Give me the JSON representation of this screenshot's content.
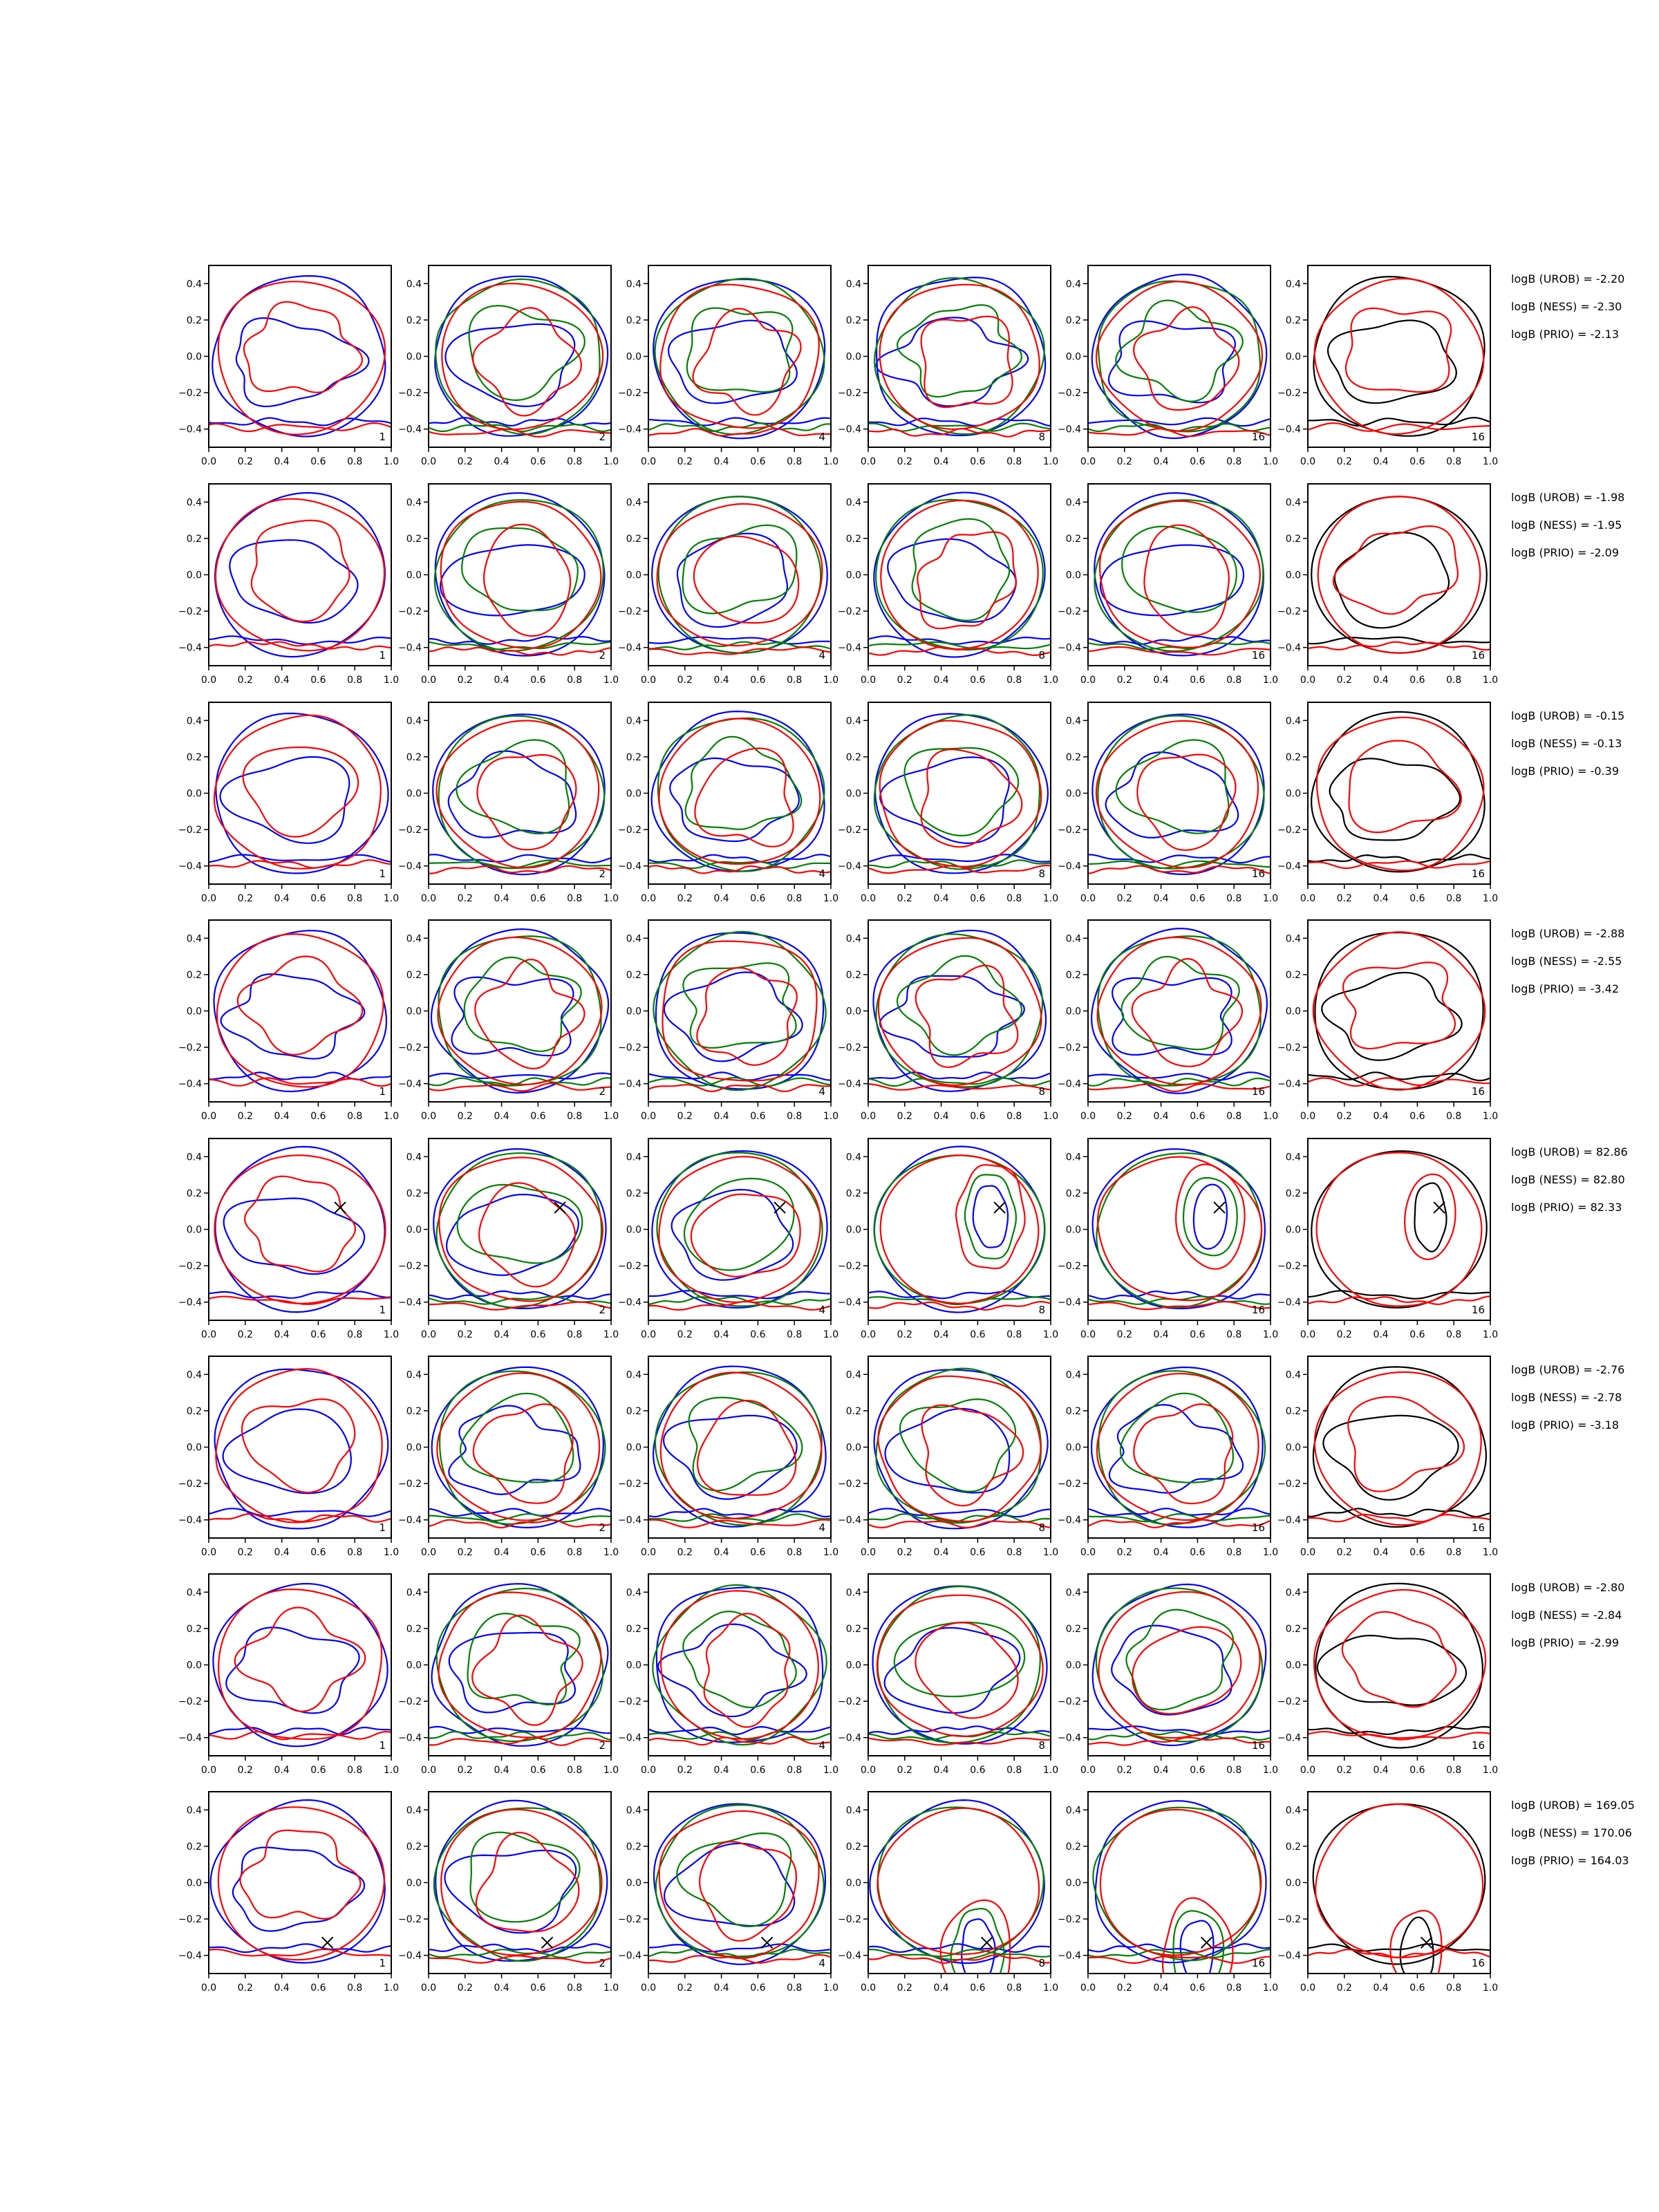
{
  "chart_data": {
    "type": "contour",
    "description_layout": "8 rows x 6 columns grid of contour panels",
    "axes": {
      "xlim": [
        0.0,
        1.0
      ],
      "ylim": [
        -0.5,
        0.5
      ],
      "grid": false
    },
    "xticks": [
      "0.0",
      "0.2",
      "0.4",
      "0.6",
      "0.8",
      "1.0"
    ],
    "yticks": [
      "0.4",
      "0.2",
      "0.0",
      "−0.2",
      "−0.4"
    ],
    "column_labels": [
      "1",
      "2",
      "4",
      "8",
      "16",
      "16"
    ],
    "series_colors": {
      "blue": "#0000ff",
      "green": "#008000",
      "red": "#ff0000",
      "black": "#000000"
    },
    "column_series": [
      [
        "blue",
        "red"
      ],
      [
        "blue",
        "green",
        "red"
      ],
      [
        "blue",
        "green",
        "red"
      ],
      [
        "blue",
        "green",
        "red"
      ],
      [
        "blue",
        "green",
        "red"
      ],
      [
        "black",
        "red"
      ]
    ],
    "rows": [
      {
        "annotations": [
          "logB (UROB) = -2.20",
          "logB (NESS) = -2.30",
          "logB (PRIO) = -2.13"
        ],
        "marker": null
      },
      {
        "annotations": [
          "logB (UROB) = -1.98",
          "logB (NESS) = -1.95",
          "logB (PRIO) = -2.09"
        ],
        "marker": null
      },
      {
        "annotations": [
          "logB (UROB) = -0.15",
          "logB (NESS) = -0.13",
          "logB (PRIO) = -0.39"
        ],
        "marker": null
      },
      {
        "annotations": [
          "logB (UROB) = -2.88",
          "logB (NESS) = -2.55",
          "logB (PRIO) = -3.42"
        ],
        "marker": null
      },
      {
        "annotations": [
          "logB (UROB) = 82.86",
          "logB (NESS) = 82.80",
          "logB (PRIO) = 82.33"
        ],
        "marker": {
          "x": 0.72,
          "y": 0.12
        }
      },
      {
        "annotations": [
          "logB (UROB) = -2.76",
          "logB (NESS) = -2.78",
          "logB (PRIO) = -3.18"
        ],
        "marker": null
      },
      {
        "annotations": [
          "logB (UROB) = -2.80",
          "logB (NESS) = -2.84",
          "logB (PRIO) = -2.99"
        ],
        "marker": null
      },
      {
        "annotations": [
          "logB (UROB) = 169.05",
          "logB (NESS) = 170.06",
          "logB (PRIO) = 164.03"
        ],
        "marker": {
          "x": 0.65,
          "y": -0.33
        }
      }
    ]
  }
}
